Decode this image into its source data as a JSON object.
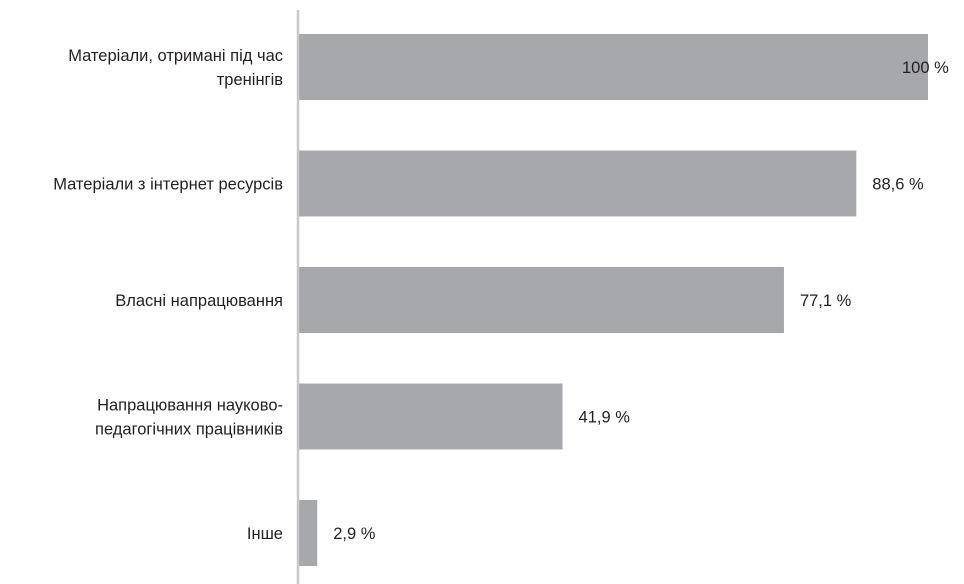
{
  "chart_data": {
    "type": "bar",
    "orientation": "horizontal",
    "categories": [
      [
        "Матеріали, отримані під час",
        "тренінгів"
      ],
      [
        "Матеріали з інтернет ресурсів"
      ],
      [
        "Власні напрацювання"
      ],
      [
        "Напрацювання науково-",
        "педагогічних працівників"
      ],
      [
        "Інше"
      ]
    ],
    "values": [
      100,
      88.6,
      77.1,
      41.9,
      2.9
    ],
    "value_labels": [
      "100 %",
      "88,6 %",
      "77,1 %",
      "41,9 %",
      "2,9 %"
    ],
    "xlim": [
      0,
      100
    ],
    "grid": false,
    "colors": {
      "bar": "#a6a8ab",
      "axis": "#c8c8c8",
      "text": "#231f20"
    }
  }
}
